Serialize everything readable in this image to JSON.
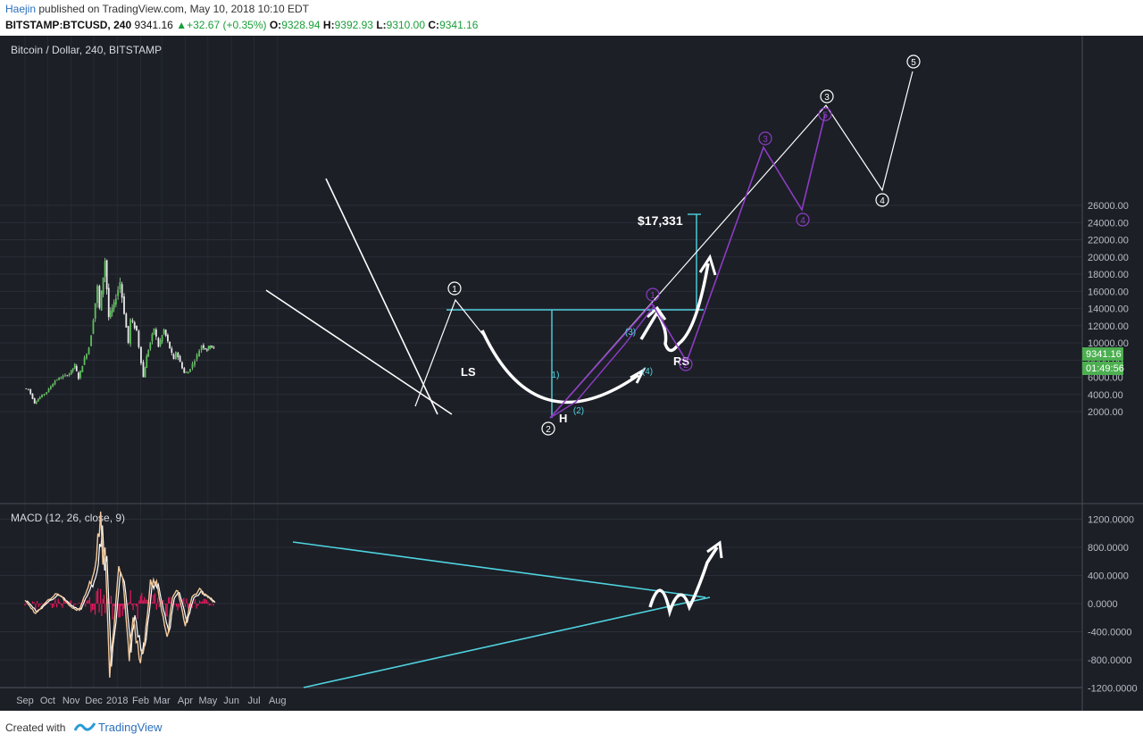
{
  "header": {
    "author": "Haejin",
    "published_text": "published on TradingView.com, May 10, 2018 10:10 EDT",
    "symbol": "BITSTAMP:BTCUSD, 240",
    "last": "9341.16",
    "change": "+32.67 (+0.35%)",
    "open_label": "O:",
    "open": "9328.94",
    "high_label": "H:",
    "high": "9392.93",
    "low_label": "L:",
    "low": "9310.00",
    "close_label": "C:",
    "close": "9341.16"
  },
  "footer": {
    "created_with": "Created with",
    "brand": "TradingView"
  },
  "colors": {
    "background": "#1c1f26",
    "axis_text": "#b8bcc6",
    "cyan": "#4fd4e0",
    "purple": "#8c3cc4",
    "macd_line": "#f1c89a",
    "histogram": "#e8195e",
    "price_tag": "#4caf50"
  },
  "chart_data": [
    {
      "type": "line",
      "title": "Bitcoin / Dollar, 240, BITSTAMP",
      "x_labels": [
        "Sep",
        "Oct",
        "Nov",
        "Dec",
        "2018",
        "Feb",
        "Mar",
        "Apr",
        "May",
        "Jun",
        "Jul",
        "Aug"
      ],
      "y_ticks": [
        "26000.00",
        "24000.00",
        "22000.00",
        "20000.00",
        "18000.00",
        "16000.00",
        "14000.00",
        "12000.00",
        "10000.00",
        "8000.00",
        "6000.00",
        "4000.00",
        "2000.00"
      ],
      "last_price_tag": "9341.16",
      "countdown_tag": "01:49:56",
      "series": [
        {
          "name": "",
          "values": [
            [
              "2017-09-01",
              4700
            ],
            [
              "2017-09-07",
              4600
            ],
            [
              "2017-09-15",
              3000
            ],
            [
              "2017-09-22",
              3700
            ],
            [
              "2017-10-01",
              4300
            ],
            [
              "2017-10-12",
              5600
            ],
            [
              "2017-10-20",
              6000
            ],
            [
              "2017-10-31",
              6400
            ],
            [
              "2017-11-07",
              7400
            ],
            [
              "2017-11-12",
              5900
            ],
            [
              "2017-11-20",
              8200
            ],
            [
              "2017-11-26",
              9500
            ],
            [
              "2017-11-29",
              11000
            ],
            [
              "2017-12-07",
              16500
            ],
            [
              "2017-12-10",
              14000
            ],
            [
              "2017-12-17",
              19600
            ],
            [
              "2017-12-22",
              13000
            ],
            [
              "2017-12-29",
              14500
            ],
            [
              "2018-01-06",
              17100
            ],
            [
              "2018-01-17",
              10000
            ],
            [
              "2018-01-20",
              12700
            ],
            [
              "2018-01-28",
              11400
            ],
            [
              "2018-02-06",
              6000
            ],
            [
              "2018-02-10",
              8400
            ],
            [
              "2018-02-20",
              11700
            ],
            [
              "2018-02-26",
              9600
            ],
            [
              "2018-03-05",
              11500
            ],
            [
              "2018-03-18",
              8000
            ],
            [
              "2018-03-21",
              9000
            ],
            [
              "2018-04-01",
              6500
            ],
            [
              "2018-04-06",
              6600
            ],
            [
              "2018-04-15",
              8000
            ],
            [
              "2018-04-24",
              9700
            ],
            [
              "2018-05-01",
              9200
            ],
            [
              "2018-05-05",
              9800
            ],
            [
              "2018-05-10",
              9341
            ]
          ]
        }
      ],
      "annotations": [
        {
          "type": "label",
          "text": "LS"
        },
        {
          "type": "label",
          "text": "H"
        },
        {
          "type": "label",
          "text": "RS"
        },
        {
          "type": "label",
          "text": "$17,331"
        },
        {
          "type": "wave",
          "text": "1",
          "color": "white"
        },
        {
          "type": "wave",
          "text": "2",
          "color": "white"
        },
        {
          "type": "wave",
          "text": "3",
          "color": "white"
        },
        {
          "type": "wave",
          "text": "4",
          "color": "white"
        },
        {
          "type": "wave",
          "text": "5",
          "color": "white"
        },
        {
          "type": "wave",
          "text": "1",
          "color": "purple"
        },
        {
          "type": "wave",
          "text": "2",
          "color": "purple"
        },
        {
          "type": "wave",
          "text": "3",
          "color": "purple"
        },
        {
          "type": "wave",
          "text": "4",
          "color": "purple"
        },
        {
          "type": "wave",
          "text": "5",
          "color": "purple"
        },
        {
          "type": "wave",
          "text": "1)",
          "color": "cyan"
        },
        {
          "type": "wave",
          "text": "(2)",
          "color": "cyan"
        },
        {
          "type": "wave",
          "text": "(3)",
          "color": "cyan"
        },
        {
          "type": "wave",
          "text": "(4)",
          "color": "cyan"
        }
      ]
    },
    {
      "type": "line",
      "title": "MACD (12, 26, close, 9)",
      "y_ticks": [
        "1200.0000",
        "800.0000",
        "400.0000",
        "0.0000",
        "-400.0000",
        "-800.0000",
        "-1200.0000"
      ],
      "series": [
        {
          "name": "",
          "values": [
            [
              "2017-09-01",
              50
            ],
            [
              "2017-09-15",
              -150
            ],
            [
              "2017-10-01",
              50
            ],
            [
              "2017-10-15",
              150
            ],
            [
              "2017-11-01",
              -50
            ],
            [
              "2017-11-12",
              -100
            ],
            [
              "2017-11-20",
              150
            ],
            [
              "2017-12-01",
              400
            ],
            [
              "2017-12-10",
              1200
            ],
            [
              "2017-12-13",
              600
            ],
            [
              "2017-12-16",
              800
            ],
            [
              "2017-12-22",
              -1100
            ],
            [
              "2017-12-26",
              -600
            ],
            [
              "2018-01-03",
              600
            ],
            [
              "2018-01-08",
              400
            ],
            [
              "2018-01-17",
              -700
            ],
            [
              "2018-01-22",
              -200
            ],
            [
              "2018-01-30",
              -800
            ],
            [
              "2018-02-06",
              -600
            ],
            [
              "2018-02-14",
              300
            ],
            [
              "2018-02-22",
              300
            ],
            [
              "2018-03-01",
              -100
            ],
            [
              "2018-03-08",
              -500
            ],
            [
              "2018-03-15",
              100
            ],
            [
              "2018-03-22",
              200
            ],
            [
              "2018-04-01",
              -300
            ],
            [
              "2018-04-10",
              100
            ],
            [
              "2018-04-20",
              200
            ],
            [
              "2018-05-01",
              100
            ],
            [
              "2018-05-10",
              0
            ]
          ]
        }
      ]
    }
  ]
}
